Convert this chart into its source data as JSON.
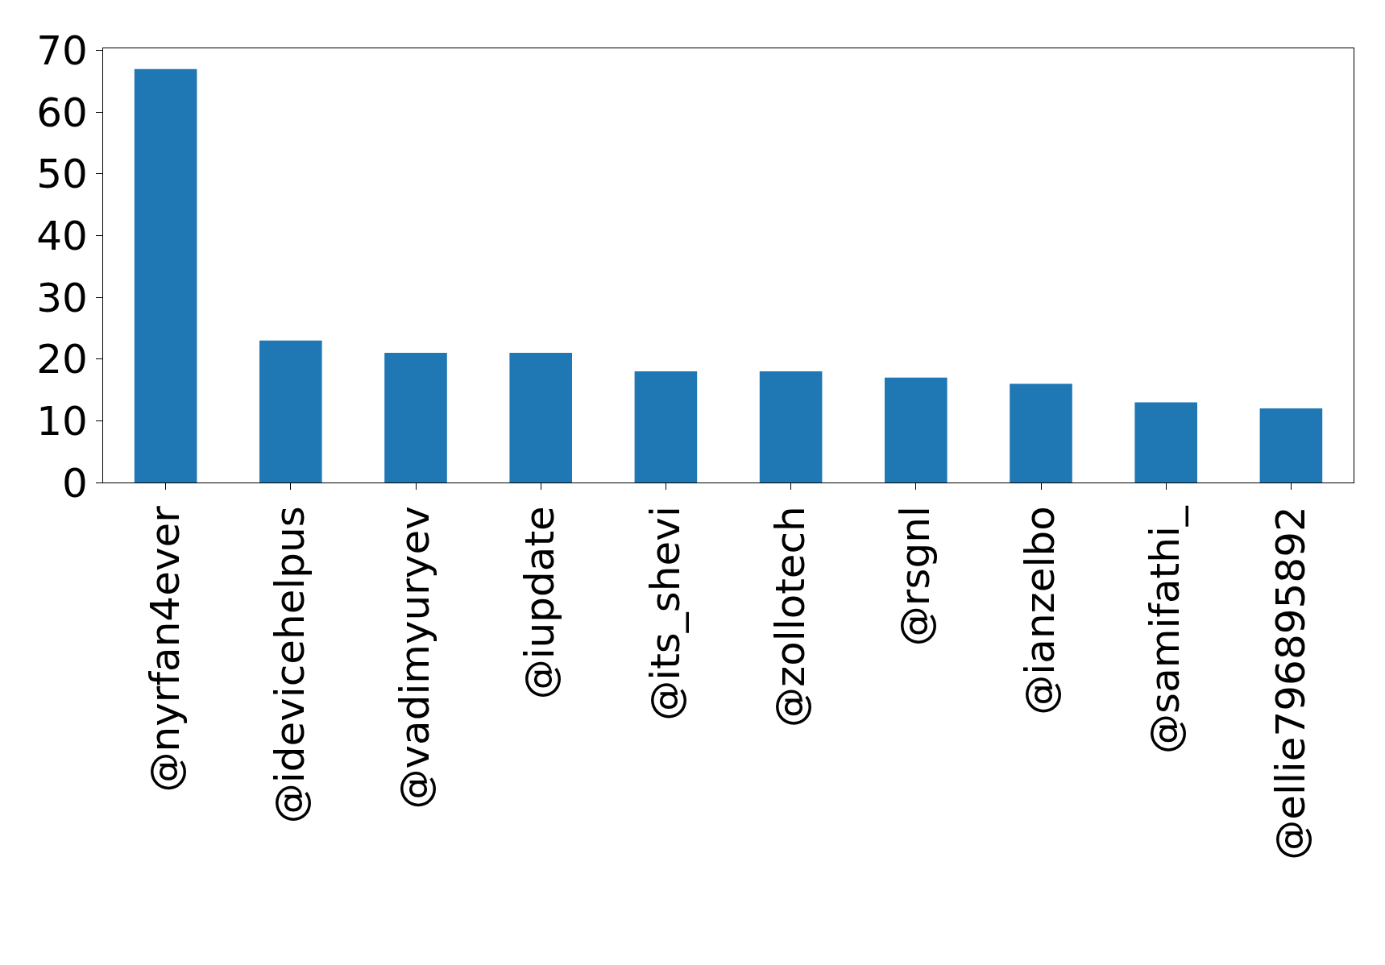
{
  "chart_data": {
    "type": "bar",
    "categories": [
      "@nyrfan4ever",
      "@idevicehelpus",
      "@vadimyuryev",
      "@iupdate",
      "@its_shevi",
      "@zollotech",
      "@rsgnl",
      "@ianzelbo",
      "@samifathi_",
      "@ellie796895892"
    ],
    "values": [
      67,
      23,
      21,
      21,
      18,
      18,
      17,
      16,
      13,
      12
    ],
    "color": "#1f77b4",
    "ylim": [
      0,
      70.35
    ],
    "yticks": [
      0,
      10,
      20,
      30,
      40,
      50,
      60,
      70
    ],
    "grid": false,
    "legend": false
  }
}
